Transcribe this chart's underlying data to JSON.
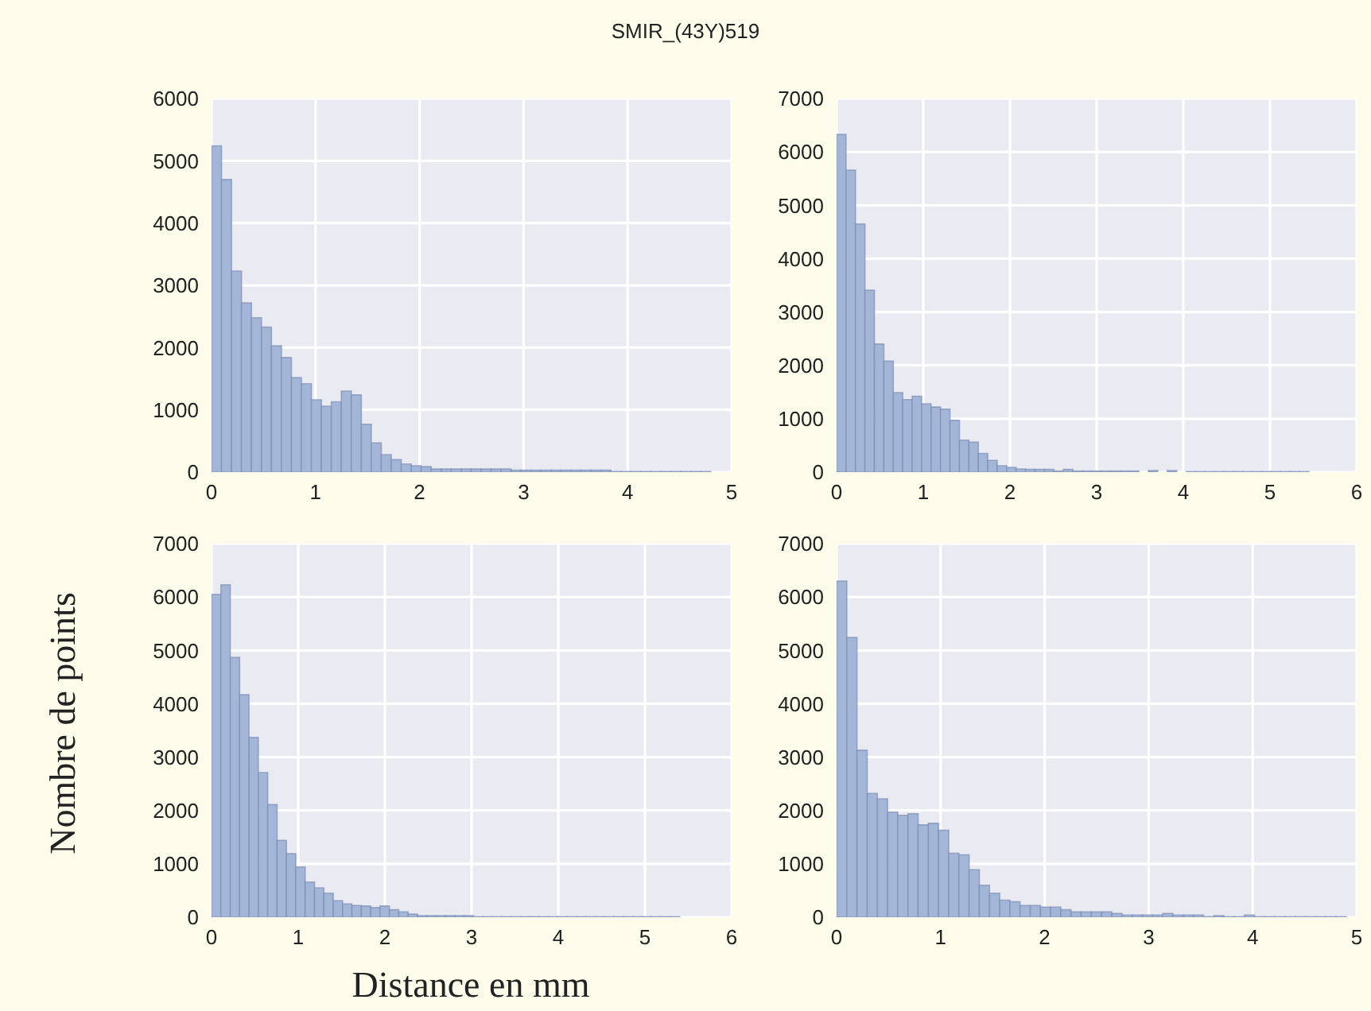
{
  "chart_data": [
    {
      "type": "histogram",
      "title": "SMIR_(43Y)519",
      "color": "#a4b6d8",
      "grid": true,
      "xlim": [
        0,
        5
      ],
      "xticks": [
        0,
        1,
        2,
        3,
        4,
        5
      ],
      "ylim": [
        0,
        6000
      ],
      "yticks": [
        0,
        1000,
        2000,
        3000,
        4000,
        5000,
        6000
      ],
      "bins": [
        0,
        0.096,
        0.192,
        0.288,
        0.384,
        0.48,
        0.576,
        0.672,
        0.768,
        0.864,
        0.96,
        1.056,
        1.152,
        1.248,
        1.344,
        1.44,
        1.536,
        1.632,
        1.728,
        1.824,
        1.92,
        2.016,
        2.112,
        2.208,
        2.304,
        2.4,
        2.496,
        2.592,
        2.688,
        2.784,
        2.88,
        2.976,
        3.072,
        3.168,
        3.264,
        3.36,
        3.456,
        3.552,
        3.648,
        3.744,
        3.84,
        3.936,
        4.032,
        4.128,
        4.224,
        4.32,
        4.416,
        4.512,
        4.608,
        4.704,
        4.8
      ],
      "values": [
        5240,
        4700,
        3230,
        2720,
        2480,
        2330,
        2030,
        1840,
        1520,
        1420,
        1160,
        1060,
        1130,
        1300,
        1240,
        770,
        470,
        280,
        200,
        130,
        100,
        90,
        50,
        50,
        50,
        50,
        50,
        50,
        50,
        50,
        30,
        30,
        30,
        30,
        30,
        30,
        30,
        30,
        30,
        30,
        10,
        10,
        10,
        10,
        10,
        10,
        10,
        10,
        10,
        10
      ]
    },
    {
      "type": "histogram",
      "color": "#a4b6d8",
      "grid": true,
      "xlim": [
        0,
        6
      ],
      "xticks": [
        0,
        1,
        2,
        3,
        4,
        5,
        6
      ],
      "ylim": [
        0,
        7000
      ],
      "yticks": [
        0,
        1000,
        2000,
        3000,
        4000,
        5000,
        6000,
        7000
      ],
      "bins": [
        0,
        0.109,
        0.218,
        0.327,
        0.436,
        0.545,
        0.654,
        0.763,
        0.872,
        0.981,
        1.09,
        1.199,
        1.308,
        1.417,
        1.526,
        1.635,
        1.744,
        1.853,
        1.962,
        2.071,
        2.18,
        2.289,
        2.398,
        2.507,
        2.616,
        2.725,
        2.834,
        2.943,
        3.052,
        3.161,
        3.27,
        3.379,
        3.488,
        3.597,
        3.706,
        3.815,
        3.924,
        4.033,
        4.142,
        4.251,
        4.36,
        4.469,
        4.578,
        4.687,
        4.796,
        4.905,
        5.014,
        5.123,
        5.232,
        5.341,
        5.45
      ],
      "values": [
        6330,
        5660,
        4650,
        3410,
        2400,
        2080,
        1490,
        1360,
        1420,
        1280,
        1220,
        1180,
        970,
        600,
        560,
        350,
        220,
        120,
        90,
        60,
        50,
        50,
        50,
        20,
        50,
        20,
        20,
        20,
        20,
        20,
        20,
        20,
        0,
        30,
        0,
        30,
        0,
        10,
        10,
        10,
        10,
        10,
        10,
        10,
        10,
        10,
        10,
        10,
        10,
        10
      ]
    },
    {
      "type": "histogram",
      "xlabel": "Distance en mm",
      "ylabel": "Nombre de points",
      "color": "#a4b6d8",
      "grid": true,
      "xlim": [
        0,
        6
      ],
      "xticks": [
        0,
        1,
        2,
        3,
        4,
        5,
        6
      ],
      "ylim": [
        0,
        7000
      ],
      "yticks": [
        0,
        1000,
        2000,
        3000,
        4000,
        5000,
        6000,
        7000
      ],
      "bins": [
        0,
        0.108,
        0.216,
        0.324,
        0.432,
        0.54,
        0.648,
        0.756,
        0.864,
        0.972,
        1.08,
        1.188,
        1.296,
        1.404,
        1.512,
        1.62,
        1.728,
        1.836,
        1.944,
        2.052,
        2.16,
        2.268,
        2.376,
        2.484,
        2.592,
        2.7,
        2.808,
        2.916,
        3.024,
        3.132,
        3.24,
        3.348,
        3.456,
        3.564,
        3.672,
        3.78,
        3.888,
        3.996,
        4.104,
        4.212,
        4.32,
        4.428,
        4.536,
        4.644,
        4.752,
        4.86,
        4.968,
        5.076,
        5.184,
        5.292,
        5.4
      ],
      "values": [
        6050,
        6230,
        4870,
        4170,
        3370,
        2710,
        2110,
        1440,
        1190,
        940,
        660,
        550,
        450,
        310,
        250,
        220,
        210,
        180,
        210,
        140,
        100,
        60,
        30,
        30,
        30,
        30,
        30,
        30,
        10,
        10,
        10,
        10,
        10,
        10,
        10,
        10,
        10,
        10,
        10,
        10,
        10,
        10,
        10,
        10,
        10,
        10,
        10,
        10,
        10,
        10
      ]
    },
    {
      "type": "histogram",
      "color": "#a4b6d8",
      "grid": true,
      "xlim": [
        0,
        5
      ],
      "xticks": [
        0,
        1,
        2,
        3,
        4,
        5
      ],
      "ylim": [
        0,
        7000
      ],
      "yticks": [
        0,
        1000,
        2000,
        3000,
        4000,
        5000,
        6000,
        7000
      ],
      "bins": [
        0,
        0.098,
        0.196,
        0.294,
        0.392,
        0.49,
        0.588,
        0.686,
        0.784,
        0.882,
        0.98,
        1.078,
        1.176,
        1.274,
        1.372,
        1.47,
        1.568,
        1.666,
        1.764,
        1.862,
        1.96,
        2.058,
        2.156,
        2.254,
        2.352,
        2.45,
        2.548,
        2.646,
        2.744,
        2.842,
        2.94,
        3.038,
        3.136,
        3.234,
        3.332,
        3.43,
        3.528,
        3.626,
        3.724,
        3.822,
        3.92,
        4.018,
        4.116,
        4.214,
        4.312,
        4.41,
        4.508,
        4.606,
        4.704,
        4.802,
        4.9
      ],
      "values": [
        6300,
        5240,
        3130,
        2320,
        2220,
        1970,
        1910,
        1940,
        1730,
        1760,
        1630,
        1200,
        1170,
        890,
        600,
        450,
        320,
        290,
        220,
        220,
        190,
        190,
        140,
        100,
        100,
        100,
        100,
        70,
        40,
        40,
        40,
        40,
        70,
        40,
        40,
        40,
        10,
        30,
        10,
        10,
        40,
        10,
        10,
        10,
        10,
        10,
        10,
        10,
        10,
        10
      ]
    }
  ]
}
